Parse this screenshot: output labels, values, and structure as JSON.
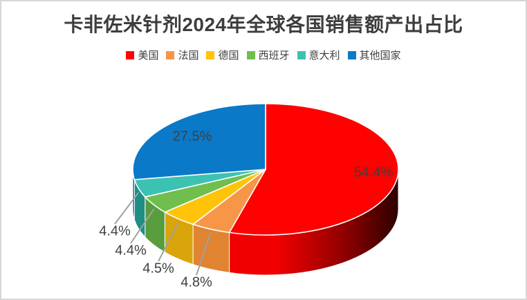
{
  "chart_data": {
    "type": "pie",
    "effect": "3d",
    "title": "卡非佐米针剂2024年全球各国销售额产出占比",
    "categories": [
      "美国",
      "法国",
      "德国",
      "西班牙",
      "意大利",
      "其他国家"
    ],
    "values": [
      54.4,
      4.8,
      4.5,
      4.4,
      4.4,
      27.5
    ],
    "labels": [
      "54.4%",
      "4.8%",
      "4.5%",
      "4.4%",
      "4.4%",
      "27.5%"
    ],
    "colors": [
      "#FE0100",
      "#F79646",
      "#FFC30A",
      "#6FBE4E",
      "#3BC2B2",
      "#0A79C8"
    ],
    "wall_colors": [
      "#B00000",
      "#E08431",
      "#D9A50B",
      "#579D3E",
      "#1F8E85",
      "#0A5A94"
    ],
    "label_color": "#404040",
    "leader_line_color": "#A0A0A0",
    "legend_position": "top",
    "start_angle_deg": 0,
    "direction": "clockwise",
    "unit": "%"
  }
}
